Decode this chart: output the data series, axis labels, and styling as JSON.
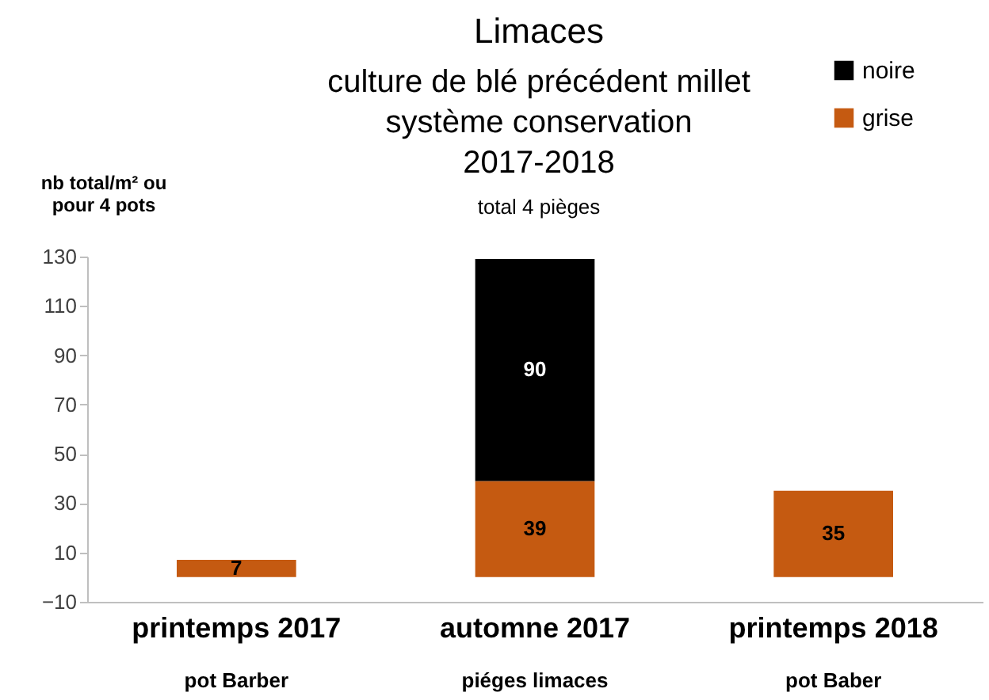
{
  "chart_data": {
    "type": "bar",
    "stacked": true,
    "title": "Limaces",
    "subtitle": "culture de blé précédent millet\nsystème conservation\n2017-2018",
    "ylabel": "nb total/m² ou\npour 4 pots",
    "annotations": [
      "total 4 pièges",
      "pot Barber",
      "piéges limaces",
      "pot Baber"
    ],
    "categories": [
      "printemps 2017",
      "automne 2017",
      "printemps 2018"
    ],
    "series": [
      {
        "name": "grise",
        "color": "#c55a11",
        "values": [
          7,
          39,
          35
        ],
        "value_labels": [
          "7",
          "39",
          "35"
        ]
      },
      {
        "name": "noire",
        "color": "#000000",
        "values": [
          0,
          90,
          0
        ],
        "value_labels": [
          null,
          "90",
          null
        ]
      }
    ],
    "ylim": [
      -10,
      130
    ],
    "yticks": [
      -10,
      10,
      30,
      50,
      70,
      90,
      110,
      130
    ],
    "legend": "top right"
  }
}
